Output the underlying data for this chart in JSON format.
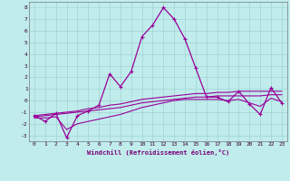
{
  "title": "",
  "xlabel": "Windchill (Refroidissement éolien,°C)",
  "bg_color": "#c0ecec",
  "grid_color": "#99cccc",
  "line_color": "#990099",
  "hours": [
    0,
    1,
    2,
    3,
    4,
    5,
    6,
    7,
    8,
    9,
    10,
    11,
    12,
    13,
    14,
    15,
    16,
    17,
    18,
    19,
    20,
    21,
    22,
    23
  ],
  "line1": [
    -1.3,
    -1.8,
    -1.1,
    -3.2,
    -1.3,
    -0.9,
    -0.4,
    2.3,
    1.2,
    2.5,
    5.5,
    6.5,
    8.0,
    7.0,
    5.3,
    2.8,
    0.3,
    0.3,
    -0.1,
    0.8,
    -0.3,
    -1.2,
    1.1,
    -0.2
  ],
  "line2": [
    -1.3,
    -1.2,
    -1.1,
    -1.0,
    -0.9,
    -0.7,
    -0.6,
    -0.4,
    -0.3,
    -0.1,
    0.1,
    0.2,
    0.3,
    0.4,
    0.5,
    0.6,
    0.6,
    0.7,
    0.7,
    0.8,
    0.8,
    0.8,
    0.8,
    0.8
  ],
  "line3": [
    -1.4,
    -1.3,
    -1.2,
    -1.1,
    -1.0,
    -0.9,
    -0.8,
    -0.7,
    -0.6,
    -0.4,
    -0.2,
    -0.1,
    0.0,
    0.1,
    0.2,
    0.3,
    0.3,
    0.4,
    0.4,
    0.4,
    0.4,
    0.4,
    0.5,
    0.5
  ],
  "line4": [
    -1.5,
    -1.5,
    -1.4,
    -2.5,
    -2.0,
    -1.8,
    -1.6,
    -1.4,
    -1.2,
    -0.9,
    -0.6,
    -0.4,
    -0.2,
    0.0,
    0.1,
    0.1,
    0.1,
    0.1,
    0.0,
    0.1,
    -0.2,
    -0.5,
    0.2,
    -0.1
  ],
  "xlim": [
    -0.5,
    23.5
  ],
  "ylim": [
    -3.5,
    8.5
  ],
  "yticks": [
    -3,
    -2,
    -1,
    0,
    1,
    2,
    3,
    4,
    5,
    6,
    7,
    8
  ],
  "xticks": [
    0,
    1,
    2,
    3,
    4,
    5,
    6,
    7,
    8,
    9,
    10,
    11,
    12,
    13,
    14,
    15,
    16,
    17,
    18,
    19,
    20,
    21,
    22,
    23
  ]
}
